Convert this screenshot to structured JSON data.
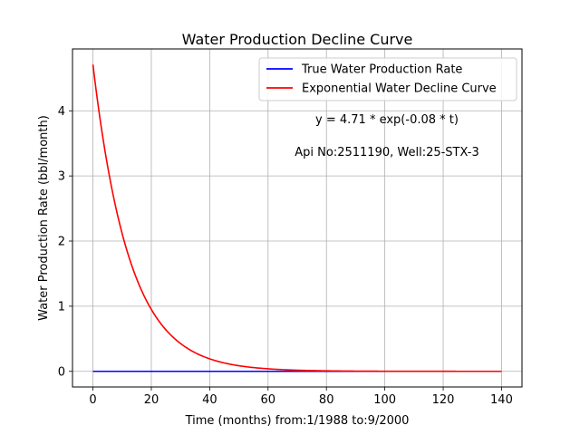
{
  "chart_data": {
    "type": "line",
    "title": "Water Production Decline Curve",
    "xlabel": "Time (months) from:1/1988 to:9/2000",
    "ylabel": "Water Production Rate (bbl/month)",
    "xlim": [
      -7,
      147
    ],
    "ylim": [
      -0.24,
      4.95
    ],
    "xticks": [
      0,
      20,
      40,
      60,
      80,
      100,
      120,
      140
    ],
    "yticks": [
      0,
      1,
      2,
      3,
      4
    ],
    "grid": true,
    "legend_position": "top-right",
    "series": [
      {
        "name": "True Water Production Rate",
        "color": "#0000ff",
        "x": [
          0,
          140
        ],
        "y": [
          0,
          0
        ]
      },
      {
        "name": "Exponential Water Decline Curve",
        "color": "#ff0000",
        "model": {
          "a": 4.71,
          "b": 0.08
        },
        "x_range": [
          0,
          140
        ]
      }
    ],
    "annotations": [
      "y = 4.71 * exp(-0.08 * t)",
      "Api No:2511190, Well:25-STX-3"
    ]
  }
}
